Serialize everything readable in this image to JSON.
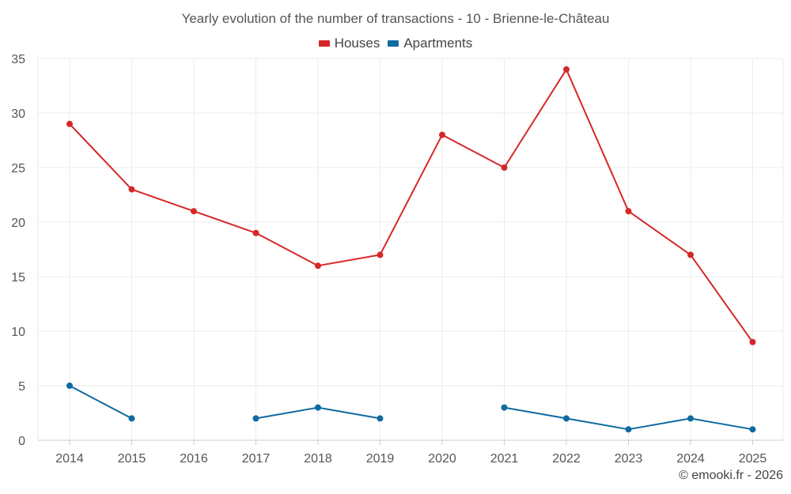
{
  "chart_data": {
    "type": "line",
    "title": "Yearly evolution of the number of transactions - 10 - Brienne-le-Château",
    "xlabel": "",
    "ylabel": "",
    "categories": [
      "2014",
      "2015",
      "2016",
      "2017",
      "2018",
      "2019",
      "2020",
      "2021",
      "2022",
      "2023",
      "2024",
      "2025"
    ],
    "ylim": [
      0,
      35
    ],
    "yticks": [
      0,
      5,
      10,
      15,
      20,
      25,
      30,
      35
    ],
    "grid": true,
    "legend_position": "top-center",
    "series": [
      {
        "name": "Houses",
        "color": "#d62728",
        "values": [
          29,
          23,
          21,
          19,
          16,
          17,
          28,
          25,
          34,
          21,
          17,
          9
        ]
      },
      {
        "name": "Apartments",
        "color": "#0f6aa0",
        "values": [
          5,
          2,
          null,
          2,
          3,
          2,
          null,
          3,
          2,
          1,
          2,
          1
        ]
      }
    ]
  },
  "credit": "© emooki.fr - 2026"
}
